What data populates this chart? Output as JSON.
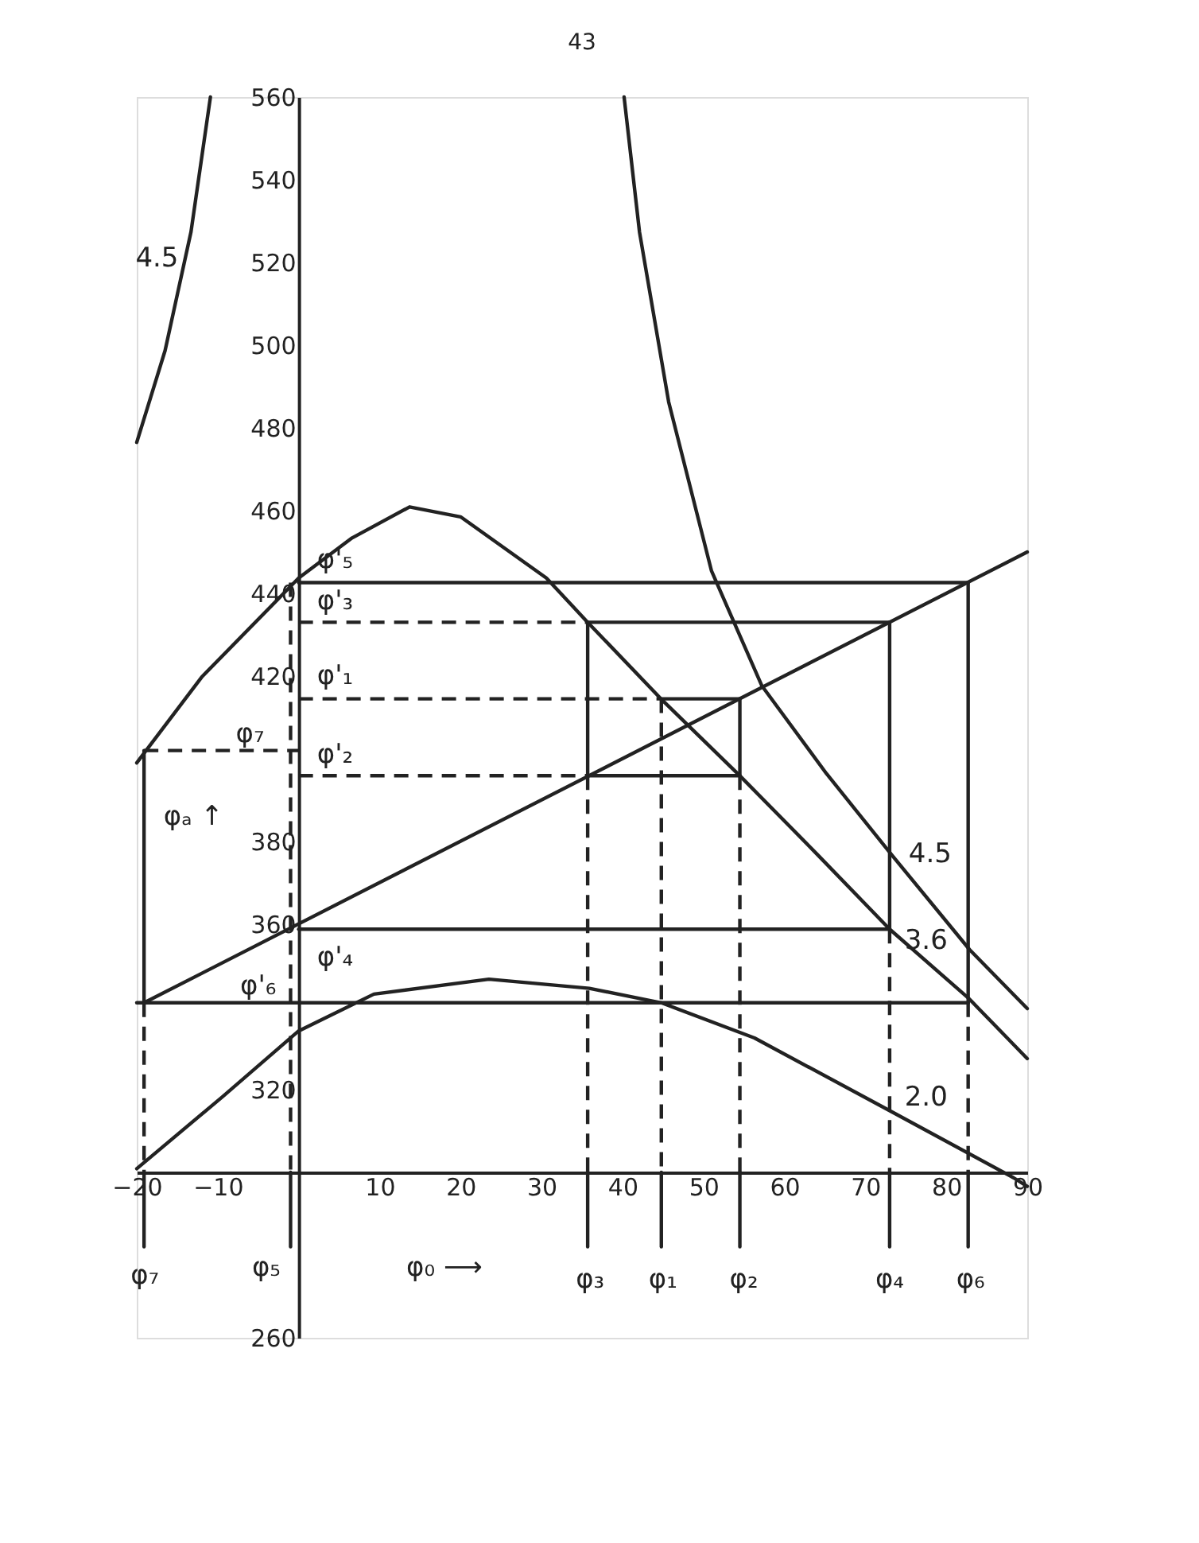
{
  "chart_data": {
    "type": "line",
    "xlim": [
      -20,
      90
    ],
    "xticks": [
      -20,
      -10,
      10,
      20,
      30,
      40,
      50,
      60,
      70,
      80,
      90
    ],
    "ylim": [
      260,
      560
    ],
    "yticks": [
      260,
      320,
      360,
      380,
      420,
      440,
      460,
      480,
      500,
      520,
      540,
      560
    ],
    "grid": false,
    "marker": "none",
    "ref_lines": [
      {
        "axis": "y",
        "value": 300,
        "label": null
      },
      {
        "axis": "x",
        "value": 0,
        "label": null
      }
    ],
    "series": [
      {
        "color": "#222222",
        "line_style": "solid",
        "x": [
          -20,
          -12,
          0,
          6.6,
          13.7,
          20,
          30.6,
          35.7,
          45,
          54.5,
          64,
          73,
          82.7,
          90
        ],
        "values": [
          399,
          419.7,
          443.7,
          453.4,
          460.9,
          458.5,
          443.7,
          433,
          414,
          395.9,
          377,
          358.8,
          342.2,
          327.5
        ]
      },
      {
        "color": "#222222",
        "line_style": "solid",
        "x": [
          40.2,
          42.1,
          45.7,
          51,
          57.2,
          65.2,
          73.2,
          82.9,
          90
        ],
        "values": [
          560,
          527.4,
          486.3,
          445.4,
          417.7,
          396.4,
          376.9,
          353.8,
          339.6
        ]
      },
      {
        "color": "#222222",
        "line_style": "solid",
        "x": [
          -10.9,
          -13.3,
          -16.5,
          -20
        ],
        "values": [
          560,
          527.4,
          498.7,
          476.5
        ]
      },
      {
        "color": "#222222",
        "line_style": "solid",
        "x": [
          -20,
          -9.4,
          0,
          9.3,
          23.5,
          35.9,
          44.8,
          56.3,
          73.2,
          88.3,
          90
        ],
        "values": [
          300.9,
          318.3,
          334.2,
          343.1,
          346.7,
          344.5,
          341,
          332.5,
          314.7,
          298.7,
          296.6
        ]
      },
      {
        "color": "#222222",
        "line_style": "solid",
        "x": [
          -19.1,
          90
        ],
        "values": [
          341,
          450
        ]
      },
      {
        "color": "#222222",
        "line_style": "solid",
        "x": [
          0,
          82.7
        ],
        "values": [
          442.6,
          442.6
        ]
      },
      {
        "color": "#222222",
        "line_style": "dashed",
        "x": [
          0,
          35.7
        ],
        "values": [
          433,
          433
        ]
      },
      {
        "color": "#222222",
        "line_style": "solid",
        "x": [
          35.7,
          73
        ],
        "values": [
          433,
          433
        ]
      },
      {
        "color": "#222222",
        "line_style": "dashed",
        "x": [
          0,
          44.8
        ],
        "values": [
          414.5,
          414.5
        ]
      },
      {
        "color": "#222222",
        "line_style": "solid",
        "x": [
          44.8,
          54.5
        ],
        "values": [
          414.5,
          414.5
        ]
      },
      {
        "color": "#222222",
        "line_style": "dashed",
        "x": [
          0,
          35.7
        ],
        "values": [
          395.9,
          395.9
        ]
      },
      {
        "color": "#222222",
        "line_style": "solid",
        "x": [
          35.7,
          54.5
        ],
        "values": [
          395.9,
          395.9
        ]
      },
      {
        "color": "#222222",
        "line_style": "solid",
        "x": [
          0,
          73
        ],
        "values": [
          358.8,
          358.8
        ]
      },
      {
        "color": "#222222",
        "line_style": "solid",
        "x": [
          -20,
          82.7
        ],
        "values": [
          341,
          341
        ]
      },
      {
        "color": "#222222",
        "line_style": "dashed",
        "x": [
          -19.1,
          0
        ],
        "values": [
          402,
          402
        ]
      },
      {
        "color": "#222222",
        "line_style": "solid",
        "x": [
          -19.1,
          -19.1
        ],
        "values": [
          402,
          341
        ]
      },
      {
        "color": "#222222",
        "line_style": "dashed",
        "x": [
          -19.1,
          -19.1
        ],
        "values": [
          341,
          300
        ]
      },
      {
        "color": "#222222",
        "line_style": "solid",
        "x": [
          -19.1,
          -19.1
        ],
        "values": [
          300,
          282
        ]
      },
      {
        "color": "#222222",
        "line_style": "dashed",
        "x": [
          -1,
          -1
        ],
        "values": [
          442.6,
          300
        ]
      },
      {
        "color": "#222222",
        "line_style": "solid",
        "x": [
          -1,
          -1
        ],
        "values": [
          300,
          282
        ]
      },
      {
        "color": "#222222",
        "line_style": "solid",
        "x": [
          35.7,
          35.7
        ],
        "values": [
          433,
          395.9
        ]
      },
      {
        "color": "#222222",
        "line_style": "dashed",
        "x": [
          35.7,
          35.7
        ],
        "values": [
          395.9,
          300
        ]
      },
      {
        "color": "#222222",
        "line_style": "solid",
        "x": [
          35.7,
          35.7
        ],
        "values": [
          300,
          282
        ]
      },
      {
        "color": "#222222",
        "line_style": "dashed",
        "x": [
          44.8,
          44.8
        ],
        "values": [
          414.5,
          300
        ]
      },
      {
        "color": "#222222",
        "line_style": "solid",
        "x": [
          44.8,
          44.8
        ],
        "values": [
          300,
          282
        ]
      },
      {
        "color": "#222222",
        "line_style": "solid",
        "x": [
          54.5,
          54.5
        ],
        "values": [
          414.5,
          395.9
        ]
      },
      {
        "color": "#222222",
        "line_style": "dashed",
        "x": [
          54.5,
          54.5
        ],
        "values": [
          395.9,
          300
        ]
      },
      {
        "color": "#222222",
        "line_style": "solid",
        "x": [
          54.5,
          54.5
        ],
        "values": [
          300,
          282
        ]
      },
      {
        "color": "#222222",
        "line_style": "solid",
        "x": [
          73,
          73
        ],
        "values": [
          433,
          358.8
        ]
      },
      {
        "color": "#222222",
        "line_style": "dashed",
        "x": [
          73,
          73
        ],
        "values": [
          358.8,
          300
        ]
      },
      {
        "color": "#222222",
        "line_style": "solid",
        "x": [
          73,
          73
        ],
        "values": [
          300,
          282
        ]
      },
      {
        "color": "#222222",
        "line_style": "solid",
        "x": [
          82.7,
          82.7
        ],
        "values": [
          442.6,
          341
        ]
      },
      {
        "color": "#222222",
        "line_style": "dashed",
        "x": [
          82.7,
          82.7
        ],
        "values": [
          341,
          300
        ]
      },
      {
        "color": "#222222",
        "line_style": "solid",
        "x": [
          82.7,
          82.7
        ],
        "values": [
          300,
          282
        ]
      }
    ],
    "annotations": [
      "43",
      "4.5",
      "4.5",
      "3.6",
      "2.0",
      "φ'₅",
      "φ'₃",
      "φ'₁",
      "φ₇",
      "φ'₂",
      "φ'₄",
      "φ'₆",
      "φₐ ↑",
      "φ₇",
      "φ₅",
      "φ₀ ⟶",
      "φ₃",
      "φ₁",
      "φ₂",
      "φ₄",
      "φ₆"
    ]
  }
}
